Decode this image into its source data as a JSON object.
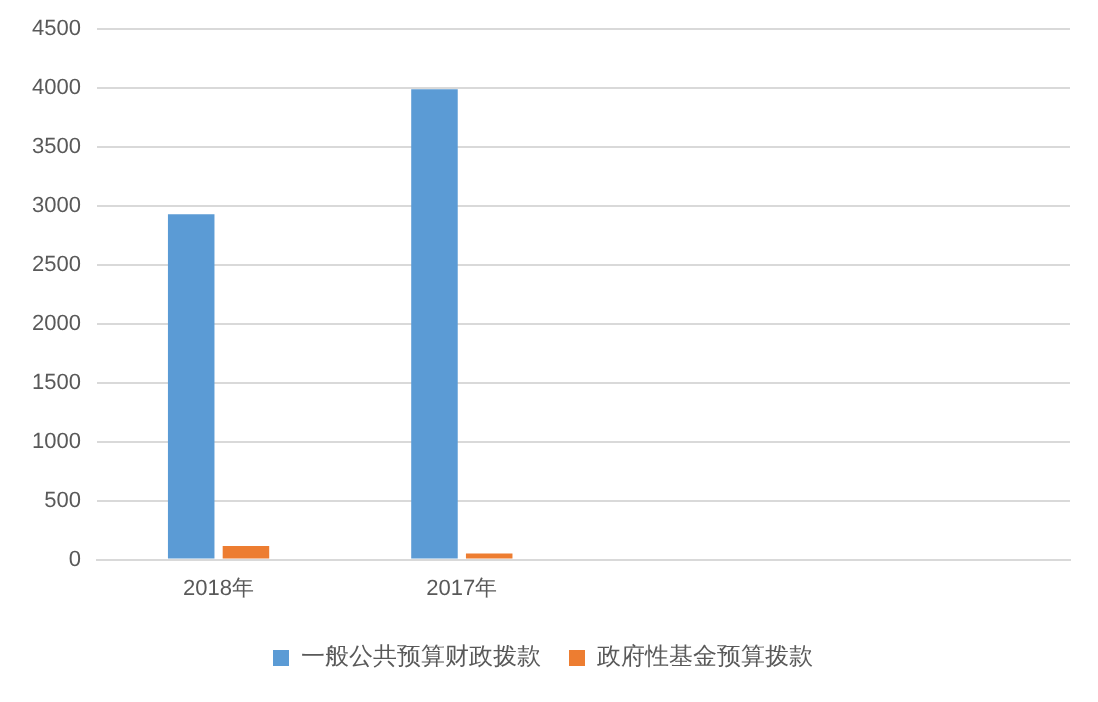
{
  "chart_data": {
    "type": "bar",
    "categories": [
      "2018年",
      "2017年",
      null,
      null
    ],
    "series": [
      {
        "name": "一般公共预算财政拨款",
        "color": "#5b9bd5",
        "values": [
          2930,
          3990,
          null,
          null
        ]
      },
      {
        "name": "政府性基金预算拨款",
        "color": "#ed7d31",
        "values": [
          115,
          52,
          null,
          null
        ]
      }
    ],
    "ylim": [
      0,
      4500
    ],
    "yticks": [
      0,
      500,
      1000,
      1500,
      2000,
      2500,
      3000,
      3500,
      4000,
      4500
    ],
    "grid": "y",
    "legend": "bottom"
  }
}
